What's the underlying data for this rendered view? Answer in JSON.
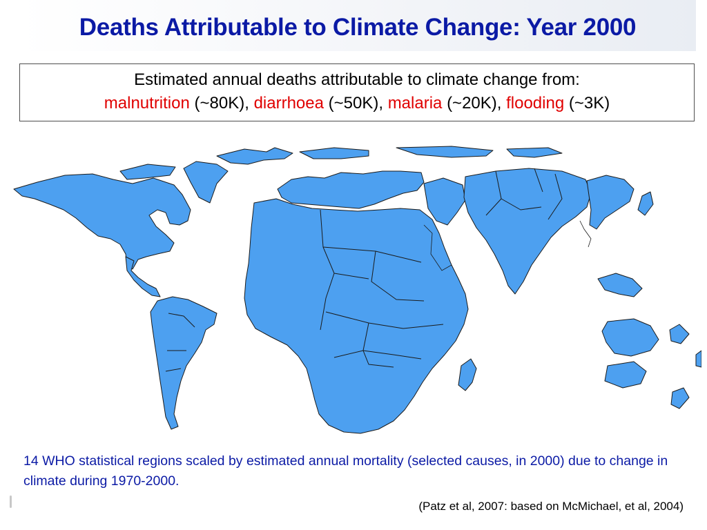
{
  "slide": {
    "title": "Deaths Attributable to Climate Change: Year 2000"
  },
  "summary": {
    "intro": "Estimated annual deaths attributable to climate change from:",
    "causes": [
      {
        "name": "malnutrition",
        "value": "(~80K)",
        "sep": ", "
      },
      {
        "name": "diarrhoea",
        "value": "(~50K)",
        "sep": ", "
      },
      {
        "name": "malaria",
        "value": "(~20K)",
        "sep": ", "
      },
      {
        "name": "flooding",
        "value": "(~3K)",
        "sep": ""
      }
    ]
  },
  "map": {
    "fill_color": "#4da0f0",
    "stroke_color": "#1a1a1a"
  },
  "caption": "14 WHO statistical regions scaled by estimated annual mortality (selected causes, in 2000) due to change in climate during 1970-2000.",
  "citation": "(Patz et al, 2007: based on McMichael, et al, 2004)",
  "colors": {
    "title": "#0b1aa5",
    "highlight": "#e00000",
    "caption": "#0b1aa5"
  }
}
